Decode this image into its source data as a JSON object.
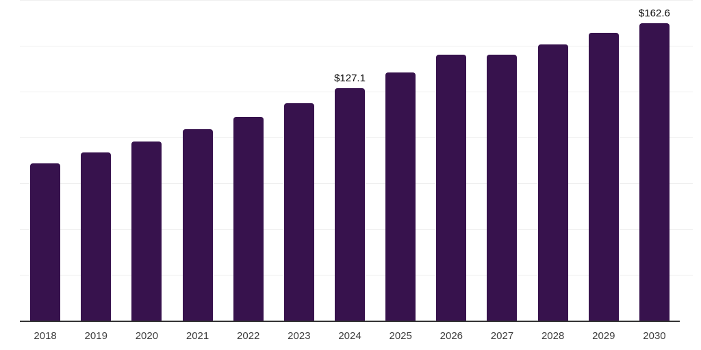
{
  "colors": {
    "bar": "#37124d",
    "gridline": "#efefef",
    "axis_line": "#333333",
    "tick_label": "#3d3d3d",
    "data_label": "#0f0f0f",
    "background": "#ffffff"
  },
  "chart_data": {
    "type": "bar",
    "categories": [
      "2018",
      "2019",
      "2020",
      "2021",
      "2022",
      "2023",
      "2024",
      "2025",
      "2026",
      "2027",
      "2028",
      "2029",
      "2030"
    ],
    "values": [
      86.3,
      92.2,
      98.2,
      104.8,
      111.5,
      119.0,
      127.1,
      135.9,
      145.5,
      145.5,
      151.1,
      157.4,
      162.6
    ],
    "data_labels": {
      "2024": "$127.1",
      "2030": "$162.6"
    },
    "value_prefix": "$",
    "xlabel": "",
    "ylabel": "",
    "ylim": [
      0,
      175
    ],
    "gridline_step": 25,
    "grid": true,
    "legend": "none"
  }
}
